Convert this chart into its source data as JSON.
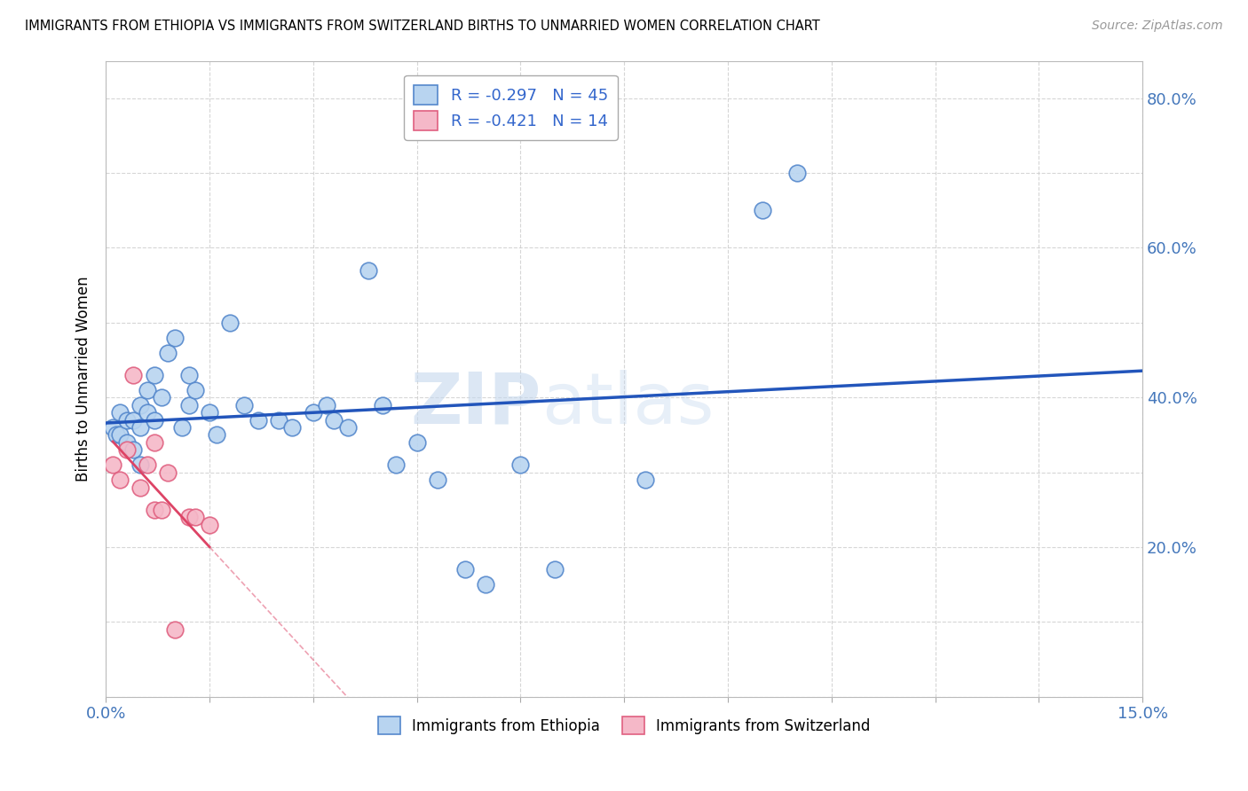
{
  "title": "IMMIGRANTS FROM ETHIOPIA VS IMMIGRANTS FROM SWITZERLAND BIRTHS TO UNMARRIED WOMEN CORRELATION CHART",
  "source": "Source: ZipAtlas.com",
  "ylabel": "Births to Unmarried Women",
  "xlim": [
    0.0,
    0.15
  ],
  "ylim": [
    0.0,
    0.85
  ],
  "x_ticks": [
    0.0,
    0.015,
    0.03,
    0.045,
    0.06,
    0.075,
    0.09,
    0.105,
    0.12,
    0.135,
    0.15
  ],
  "y_ticks": [
    0.0,
    0.1,
    0.2,
    0.3,
    0.4,
    0.5,
    0.6,
    0.7,
    0.8
  ],
  "y_label_map": {
    "0.2": "20.0%",
    "0.4": "40.0%",
    "0.6": "60.0%",
    "0.8": "80.0%"
  },
  "watermark": "ZIPatlas",
  "ethiopia_R": -0.297,
  "ethiopia_N": 45,
  "switzerland_R": -0.421,
  "switzerland_N": 14,
  "ethiopia_color": "#b8d4f0",
  "ethiopia_edge_color": "#5588cc",
  "switzerland_color": "#f5b8c8",
  "switzerland_edge_color": "#e06080",
  "ethiopia_line_color": "#2255bb",
  "switzerland_line_color": "#dd4466",
  "ethiopia_x": [
    0.001,
    0.0015,
    0.002,
    0.002,
    0.003,
    0.003,
    0.004,
    0.004,
    0.005,
    0.005,
    0.005,
    0.006,
    0.006,
    0.007,
    0.007,
    0.008,
    0.009,
    0.01,
    0.011,
    0.012,
    0.012,
    0.013,
    0.015,
    0.016,
    0.018,
    0.02,
    0.022,
    0.025,
    0.027,
    0.03,
    0.032,
    0.033,
    0.035,
    0.038,
    0.04,
    0.042,
    0.045,
    0.048,
    0.052,
    0.055,
    0.06,
    0.065,
    0.078,
    0.095,
    0.1
  ],
  "ethiopia_y": [
    0.36,
    0.35,
    0.38,
    0.35,
    0.37,
    0.34,
    0.37,
    0.33,
    0.36,
    0.39,
    0.31,
    0.41,
    0.38,
    0.43,
    0.37,
    0.4,
    0.46,
    0.48,
    0.36,
    0.39,
    0.43,
    0.41,
    0.38,
    0.35,
    0.5,
    0.39,
    0.37,
    0.37,
    0.36,
    0.38,
    0.39,
    0.37,
    0.36,
    0.57,
    0.39,
    0.31,
    0.34,
    0.29,
    0.17,
    0.15,
    0.31,
    0.17,
    0.29,
    0.65,
    0.7
  ],
  "switzerland_x": [
    0.001,
    0.002,
    0.003,
    0.004,
    0.005,
    0.006,
    0.007,
    0.007,
    0.008,
    0.009,
    0.01,
    0.012,
    0.013,
    0.015
  ],
  "switzerland_y": [
    0.31,
    0.29,
    0.33,
    0.43,
    0.28,
    0.31,
    0.34,
    0.25,
    0.25,
    0.3,
    0.09,
    0.24,
    0.24,
    0.23
  ],
  "background_color": "#ffffff",
  "grid_color": "#cccccc"
}
